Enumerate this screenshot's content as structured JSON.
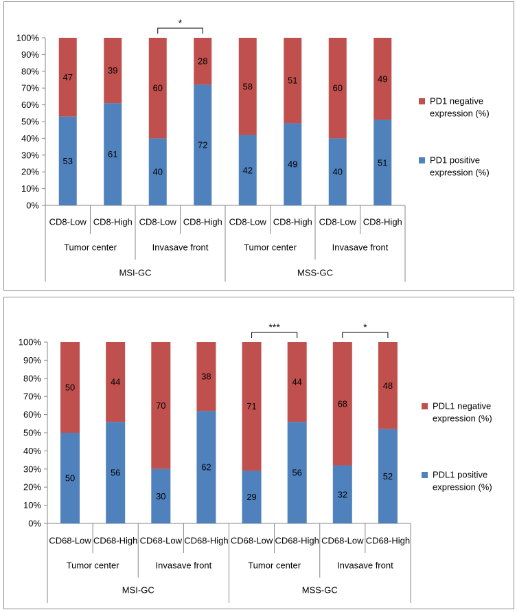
{
  "colors": {
    "positive": "#4f81bd",
    "negative": "#c0504d",
    "axis": "#868686",
    "border": "#8c8c8c",
    "text": "#000000"
  },
  "chart_data": [
    {
      "type": "bar",
      "stacked": true,
      "percent": true,
      "ylim": [
        0,
        100
      ],
      "yticks": [
        "0%",
        "10%",
        "20%",
        "30%",
        "40%",
        "50%",
        "60%",
        "70%",
        "80%",
        "90%",
        "100%"
      ],
      "categories": [
        "CD8-Low",
        "CD8-High",
        "CD8-Low",
        "CD8-High",
        "CD8-Low",
        "CD8-High",
        "CD8-Low",
        "CD8-High"
      ],
      "groups": [
        "Tumor center",
        "Invasave  front",
        "Tumor center",
        "Invasave  front"
      ],
      "supergroups": [
        "MSI-GC",
        "MSS-GC"
      ],
      "series": [
        {
          "name": "PD1 positive expression (%)",
          "legend_lines": [
            "PD1 positive",
            "expression (%)"
          ],
          "values": [
            53,
            61,
            40,
            72,
            42,
            49,
            40,
            51
          ]
        },
        {
          "name": "PD1 negative expression (%)",
          "legend_lines": [
            "PD1 negative",
            "expression (%)"
          ],
          "values": [
            47,
            39,
            60,
            28,
            58,
            51,
            60,
            49
          ]
        }
      ],
      "significance": [
        {
          "between": [
            2,
            3
          ],
          "label": "*"
        }
      ],
      "legend_position": "right"
    },
    {
      "type": "bar",
      "stacked": true,
      "percent": true,
      "ylim": [
        0,
        100
      ],
      "yticks": [
        "0%",
        "10%",
        "20%",
        "30%",
        "40%",
        "50%",
        "60%",
        "70%",
        "80%",
        "90%",
        "100%"
      ],
      "categories": [
        "CD68-Low",
        "CD68-High",
        "CD68-Low",
        "CD68-High",
        "CD68-Low",
        "CD68-High",
        "CD68-Low",
        "CD68-High"
      ],
      "groups": [
        "Tumor center",
        "Invasave  front",
        "Tumor center",
        "Invasave  front"
      ],
      "supergroups": [
        "MSI-GC",
        "MSS-GC"
      ],
      "series": [
        {
          "name": "PDL1 positive expression (%)",
          "legend_lines": [
            "PDL1 positive",
            "expression (%)"
          ],
          "values": [
            50,
            56,
            30,
            62,
            29,
            56,
            32,
            52
          ]
        },
        {
          "name": "PDL1 negative expression (%)",
          "legend_lines": [
            "PDL1 negative",
            "expression (%)"
          ],
          "values": [
            50,
            44,
            70,
            38,
            71,
            44,
            68,
            48
          ]
        }
      ],
      "significance": [
        {
          "between": [
            4,
            5
          ],
          "label": "***"
        },
        {
          "between": [
            6,
            7
          ],
          "label": "*"
        }
      ],
      "legend_position": "right"
    }
  ]
}
